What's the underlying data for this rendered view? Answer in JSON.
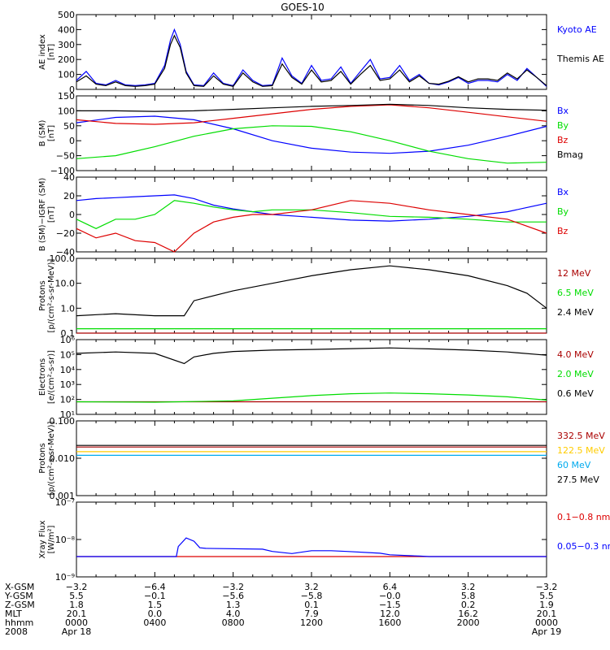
{
  "title": "GOES-10",
  "chart_data": [
    {
      "type": "line",
      "ylabel": [
        "AE index",
        "[nT]"
      ],
      "yscale": "linear",
      "ylim": [
        0,
        500
      ],
      "yticks": [
        0,
        100,
        200,
        300,
        400,
        500
      ],
      "yticklabels": [
        "0",
        "100",
        "200",
        "300",
        "400",
        "500"
      ],
      "series": [
        {
          "name": "Kyoto AE",
          "color": "#0000ff",
          "x": [
            0,
            0.5,
            1,
            1.5,
            2,
            2.5,
            3,
            3.5,
            4,
            4.5,
            4.8,
            5,
            5.3,
            5.6,
            6,
            6.5,
            7,
            7.5,
            8,
            8.5,
            9,
            9.5,
            10,
            10.5,
            11,
            11.5,
            12,
            12.5,
            13,
            13.5,
            14,
            14.5,
            15,
            15.5,
            16,
            16.5,
            17,
            17.5,
            18,
            18.5,
            19,
            19.5,
            20,
            20.5,
            21,
            21.5,
            22,
            22.5,
            23,
            23.5,
            24
          ],
          "y": [
            60,
            120,
            40,
            30,
            60,
            30,
            25,
            30,
            40,
            160,
            330,
            400,
            300,
            120,
            30,
            25,
            110,
            40,
            25,
            130,
            60,
            25,
            30,
            210,
            90,
            40,
            160,
            60,
            70,
            150,
            40,
            120,
            200,
            70,
            80,
            160,
            60,
            100,
            40,
            30,
            50,
            80,
            40,
            60,
            60,
            50,
            100,
            60,
            140,
            80,
            20
          ]
        },
        {
          "name": "Themis AE",
          "color": "#000000",
          "x": [
            0,
            0.5,
            1,
            1.5,
            2,
            2.5,
            3,
            3.5,
            4,
            4.5,
            4.8,
            5,
            5.3,
            5.6,
            6,
            6.5,
            7,
            7.5,
            8,
            8.5,
            9,
            9.5,
            10,
            10.5,
            11,
            11.5,
            12,
            12.5,
            13,
            13.5,
            14,
            14.5,
            15,
            15.5,
            16,
            16.5,
            17,
            17.5,
            18,
            18.5,
            19,
            19.5,
            20,
            20.5,
            21,
            21.5,
            22,
            22.5,
            23,
            23.5,
            24
          ],
          "y": [
            50,
            90,
            35,
            25,
            50,
            25,
            20,
            25,
            35,
            140,
            300,
            360,
            280,
            110,
            25,
            20,
            90,
            35,
            20,
            110,
            50,
            20,
            25,
            170,
            80,
            35,
            130,
            50,
            60,
            120,
            35,
            100,
            160,
            60,
            70,
            130,
            50,
            90,
            40,
            35,
            55,
            85,
            50,
            70,
            70,
            60,
            110,
            70,
            130,
            80,
            25
          ]
        }
      ]
    },
    {
      "type": "line",
      "ylabel": [
        "B (SM)",
        "[nT]"
      ],
      "yscale": "linear",
      "ylim": [
        -100,
        150
      ],
      "yticks": [
        -100,
        -50,
        0,
        50,
        100,
        150
      ],
      "yticklabels": [
        "−100",
        "−50",
        "0",
        "50",
        "100",
        "150"
      ],
      "series": [
        {
          "name": "Bx",
          "color": "#0000ff",
          "x": [
            0,
            2,
            4,
            6,
            8,
            10,
            12,
            14,
            16,
            18,
            20,
            22,
            24
          ],
          "y": [
            60,
            78,
            82,
            70,
            40,
            0,
            -25,
            -38,
            -42,
            -35,
            -15,
            15,
            48
          ]
        },
        {
          "name": "By",
          "color": "#00dd00",
          "x": [
            0,
            2,
            4,
            6,
            8,
            10,
            12,
            14,
            16,
            18,
            20,
            22,
            24
          ],
          "y": [
            -60,
            -50,
            -20,
            15,
            40,
            50,
            48,
            30,
            0,
            -35,
            -60,
            -75,
            -72
          ]
        },
        {
          "name": "Bz",
          "color": "#dd0000",
          "x": [
            0,
            2,
            4,
            6,
            8,
            10,
            12,
            14,
            16,
            18,
            20,
            22,
            24
          ],
          "y": [
            70,
            58,
            55,
            60,
            75,
            90,
            105,
            115,
            120,
            110,
            95,
            80,
            65
          ]
        },
        {
          "name": "Bmag",
          "color": "#000000",
          "x": [
            0,
            2,
            4,
            6,
            8,
            10,
            12,
            14,
            16,
            18,
            20,
            22,
            24
          ],
          "y": [
            100,
            100,
            98,
            100,
            105,
            110,
            115,
            118,
            122,
            118,
            110,
            105,
            102
          ]
        }
      ]
    },
    {
      "type": "line",
      "ylabel": [
        "B (SM)−IGRF (SM)",
        "[nT]"
      ],
      "yscale": "linear",
      "ylim": [
        -40,
        40
      ],
      "yticks": [
        -40,
        -20,
        0,
        20,
        40
      ],
      "yticklabels": [
        "−40",
        "−20",
        "0",
        "20",
        "40"
      ],
      "series": [
        {
          "name": "Bx",
          "color": "#0000ff",
          "x": [
            0,
            1,
            2,
            3,
            4,
            5,
            6,
            7,
            8,
            9,
            10,
            12,
            14,
            16,
            18,
            20,
            22,
            24
          ],
          "y": [
            15,
            17,
            18,
            19,
            20,
            21,
            17,
            10,
            6,
            3,
            0,
            -3,
            -6,
            -7,
            -5,
            -2,
            3,
            12
          ]
        },
        {
          "name": "By",
          "color": "#00dd00",
          "x": [
            0,
            1,
            2,
            3,
            4,
            5,
            6,
            7,
            8,
            9,
            10,
            12,
            14,
            16,
            18,
            20,
            22,
            24
          ],
          "y": [
            -5,
            -15,
            -5,
            -5,
            0,
            15,
            12,
            8,
            5,
            3,
            5,
            5,
            2,
            -2,
            -3,
            -5,
            -8,
            -8
          ]
        },
        {
          "name": "Bz",
          "color": "#dd0000",
          "x": [
            0,
            1,
            2,
            3,
            4,
            5,
            6,
            7,
            8,
            9,
            10,
            12,
            14,
            16,
            18,
            20,
            22,
            24
          ],
          "y": [
            -15,
            -25,
            -20,
            -28,
            -30,
            -40,
            -20,
            -8,
            -3,
            0,
            0,
            5,
            15,
            12,
            5,
            0,
            -5,
            -20
          ]
        }
      ]
    },
    {
      "type": "line",
      "ylabel": [
        "Protons",
        "[p/(cm²-s-sr-MeV)]"
      ],
      "yscale": "log",
      "ylim": [
        0.1,
        100
      ],
      "yticks": [
        0.1,
        1,
        10,
        100
      ],
      "yticklabels": [
        "0.1",
        "1.0",
        "10.0",
        "100.0"
      ],
      "series": [
        {
          "name": "12 MeV",
          "color": "#aa0000",
          "x": [
            0,
            24
          ],
          "y": [
            0.1,
            0.1
          ]
        },
        {
          "name": "6.5 MeV",
          "color": "#00dd00",
          "x": [
            0,
            24
          ],
          "y": [
            0.15,
            0.15
          ]
        },
        {
          "name": "2.4 MeV",
          "color": "#000000",
          "x": [
            0,
            2,
            4,
            5.5,
            6,
            8,
            10,
            12,
            14,
            16,
            18,
            20,
            22,
            23,
            24
          ],
          "y": [
            0.5,
            0.6,
            0.5,
            0.5,
            2,
            5,
            10,
            20,
            35,
            50,
            35,
            20,
            8,
            4,
            1
          ]
        }
      ]
    },
    {
      "type": "line",
      "ylabel": [
        "Electrons",
        "[e/(cm²-s-sr)]"
      ],
      "yscale": "log",
      "ylim": [
        10,
        1000000
      ],
      "yticks": [
        10,
        100,
        1000,
        10000,
        100000,
        1000000
      ],
      "yticklabels": [
        "10¹",
        "10²",
        "10³",
        "10⁴",
        "10⁵",
        "10⁶"
      ],
      "series": [
        {
          "name": "4.0 MeV",
          "color": "#aa0000",
          "x": [
            0,
            24
          ],
          "y": [
            70,
            70
          ]
        },
        {
          "name": "2.0 MeV",
          "color": "#00dd00",
          "x": [
            0,
            4,
            8,
            10,
            12,
            14,
            16,
            18,
            20,
            22,
            24
          ],
          "y": [
            70,
            65,
            80,
            120,
            180,
            240,
            270,
            240,
            200,
            150,
            90
          ]
        },
        {
          "name": "0.6 MeV",
          "color": "#000000",
          "x": [
            0,
            2,
            4,
            5.5,
            6,
            7,
            8,
            10,
            12,
            14,
            16,
            18,
            20,
            22,
            24
          ],
          "y": [
            120000,
            150000,
            120000,
            25000,
            70000,
            120000,
            160000,
            200000,
            220000,
            250000,
            280000,
            240000,
            200000,
            150000,
            90000
          ]
        }
      ]
    },
    {
      "type": "line",
      "ylabel": [
        "Protons",
        "[p/(cm²-s-sr-MeV)]"
      ],
      "yscale": "log",
      "ylim": [
        0.001,
        0.1
      ],
      "yticks": [
        0.001,
        0.01,
        0.1
      ],
      "yticklabels": [
        "0.001",
        "0.010",
        "0.100"
      ],
      "series": [
        {
          "name": "332.5 MeV",
          "color": "#aa0000",
          "x": [
            0,
            24
          ],
          "y": [
            0.02,
            0.02
          ]
        },
        {
          "name": "122.5 MeV",
          "color": "#ffcc00",
          "x": [
            0,
            24
          ],
          "y": [
            0.015,
            0.015
          ]
        },
        {
          "name": "60 MeV",
          "color": "#00aaee",
          "x": [
            0,
            24
          ],
          "y": [
            0.012,
            0.012
          ]
        },
        {
          "name": "27.5 MeV",
          "color": "#000000",
          "x": [
            0,
            24
          ],
          "y": [
            0.022,
            0.022
          ]
        }
      ]
    },
    {
      "type": "line",
      "ylabel": [
        "Xray Flux",
        "[W/m²]"
      ],
      "yscale": "log",
      "ylim": [
        1e-09,
        1e-07
      ],
      "yticks": [
        1e-09,
        1e-08,
        1e-07
      ],
      "yticklabels": [
        "10⁻⁹",
        "10⁻⁸",
        "10⁻⁷"
      ],
      "series": [
        {
          "name": "0.1−0.8 nm",
          "color": "#dd0000",
          "x": [
            0,
            24
          ],
          "y": [
            3.5e-09,
            3.5e-09
          ]
        },
        {
          "name": "0.05−0.3 nm",
          "color": "#0000ff",
          "x": [
            0,
            5.1,
            5.2,
            5.6,
            6.0,
            6.3,
            6.6,
            9.5,
            10,
            11,
            12,
            13,
            13.8,
            15.5,
            16,
            17.5,
            18,
            24
          ],
          "y": [
            3.5e-09,
            3.5e-09,
            6.5e-09,
            1.1e-08,
            9e-09,
            6e-09,
            5.8e-09,
            5.5e-09,
            4.8e-09,
            4.2e-09,
            5e-09,
            5e-09,
            4.8e-09,
            4.3e-09,
            3.9e-09,
            3.6e-09,
            3.5e-09,
            3.5e-09
          ]
        }
      ]
    }
  ],
  "xaxis": {
    "rows": [
      {
        "label": "X-GSM",
        "values": [
          "−3.2",
          "−6.4",
          "−3.2",
          "3.2",
          "6.4",
          "3.2",
          "−3.2"
        ]
      },
      {
        "label": "Y-GSM",
        "values": [
          "5.5",
          "−0.1",
          "−5.6",
          "−5.8",
          "−0.0",
          "5.8",
          "5.5"
        ]
      },
      {
        "label": "Z-GSM",
        "values": [
          "1.8",
          "1.5",
          "1.3",
          "0.1",
          "−1.5",
          "0.2",
          "1.9"
        ]
      },
      {
        "label": "MLT",
        "values": [
          "20.1",
          "0.0",
          "4.0",
          "7.9",
          "12.0",
          "16.2",
          "20.1"
        ]
      },
      {
        "label": "hhmm",
        "values": [
          "0000",
          "0400",
          "0800",
          "1200",
          "1600",
          "2000",
          "0000"
        ]
      },
      {
        "label": "2008",
        "values": [
          "Apr 18",
          "",
          "",
          "",
          "",
          "",
          "Apr 19"
        ]
      }
    ]
  }
}
